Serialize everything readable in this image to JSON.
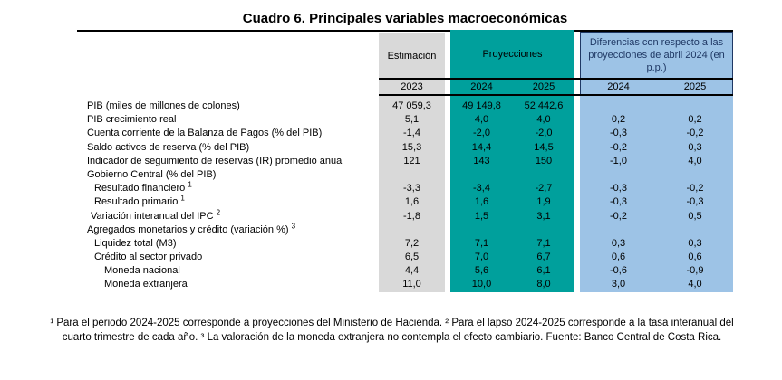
{
  "title": "Cuadro 6. Principales variables macroeconómicas",
  "colors": {
    "estimacion_bg": "#D9D9D9",
    "proyecciones_bg": "#00A09C",
    "diferencias_bg": "#9DC3E6",
    "diferencias_text": "#1F3864",
    "diferencias_border": "#1F3864"
  },
  "table": {
    "headers": {
      "estimacion": "Estimación",
      "proyecciones": "Proyecciones",
      "diferencias": "Diferencias con respecto a las proyecciones de abril 2024 (en p.p.)"
    },
    "years": [
      "2023",
      "2024",
      "2025",
      "2024",
      "2025"
    ],
    "rows": [
      {
        "label": "PIB (miles de millones de colones)",
        "sup": "",
        "level": 0,
        "values": [
          "47 059,3",
          "49 149,8",
          "52 442,6",
          "",
          ""
        ]
      },
      {
        "label": "PIB crecimiento real",
        "sup": "",
        "level": 0,
        "values": [
          "5,1",
          "4,0",
          "4,0",
          "0,2",
          "0,2"
        ]
      },
      {
        "label": "Cuenta corriente de la Balanza de Pagos (% del PIB)",
        "sup": "",
        "level": 0,
        "values": [
          "-1,4",
          "-2,0",
          "-2,0",
          "-0,3",
          "-0,2"
        ]
      },
      {
        "label": "Saldo activos de reserva (% del PIB)",
        "sup": "",
        "level": 0,
        "values": [
          "15,3",
          "14,4",
          "14,5",
          "-0,2",
          "0,3"
        ]
      },
      {
        "label": "Indicador de seguimiento de reservas (IR) promedio anual",
        "sup": "",
        "level": 0,
        "values": [
          "121",
          "143",
          "150",
          "-1,0",
          "4,0"
        ]
      },
      {
        "label": "Gobierno Central (% del PIB)",
        "sup": "",
        "level": 0,
        "values": [
          "",
          "",
          "",
          "",
          ""
        ]
      },
      {
        "label": "Resultado financiero ",
        "sup": "1",
        "level": 2,
        "values": [
          "-3,3",
          "-3,4",
          "-2,7",
          "-0,3",
          "-0,2"
        ]
      },
      {
        "label": "Resultado primario ",
        "sup": "1",
        "level": 2,
        "values": [
          "1,6",
          "1,6",
          "1,9",
          "-0,3",
          "-0,3"
        ]
      },
      {
        "label": "Variación interanual del IPC ",
        "sup": "2",
        "level": 1,
        "values": [
          "-1,8",
          "1,5",
          "3,1",
          "-0,2",
          "0,5"
        ]
      },
      {
        "label": "Agregados monetarios y crédito (variación %) ",
        "sup": "3",
        "level": 0,
        "values": [
          "",
          "",
          "",
          "",
          ""
        ]
      },
      {
        "label": "Liquidez total (M3)",
        "sup": "",
        "level": 2,
        "values": [
          "7,2",
          "7,1",
          "7,1",
          "0,3",
          "0,3"
        ]
      },
      {
        "label": "Crédito al sector privado",
        "sup": "",
        "level": 2,
        "values": [
          "6,5",
          "7,0",
          "6,7",
          "0,6",
          "0,6"
        ]
      },
      {
        "label": "Moneda nacional",
        "sup": "",
        "level": 3,
        "values": [
          "4,4",
          "5,6",
          "6,1",
          "-0,6",
          "-0,9"
        ]
      },
      {
        "label": "Moneda extranjera",
        "sup": "",
        "level": 3,
        "values": [
          "11,0",
          "10,0",
          "8,0",
          "3,0",
          "4,0"
        ]
      }
    ]
  },
  "footnote": "¹ Para el periodo 2024-2025 corresponde a proyecciones del Ministerio de Hacienda. ² Para el lapso 2024-2025 corresponde a la tasa interanual del cuarto trimestre de cada año. ³ La valoración de la moneda extranjera no contempla el efecto cambiario. Fuente: Banco Central de Costa Rica."
}
